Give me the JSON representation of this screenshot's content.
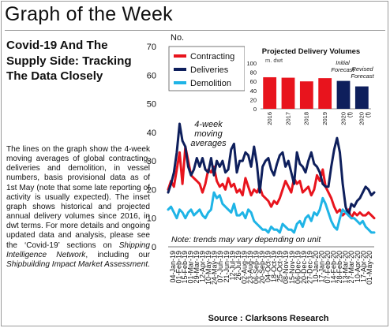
{
  "page": {
    "header": "Graph of the Week"
  },
  "article": {
    "title": "Covid-19 And The Supply Side: Tracking The Data Closely",
    "body_1": "The lines on the graph show the 4-week moving averages of global contracting, deliveries and demolition, in vessel numbers, basis provisional data as of 1st May (note that some late reporting of activity is usually expected). The inset graph shows historical and projected annual delivery volumes since 2016, in dwt terms. For more details and ongoing updated data and analysis, please see the ‘Covid-19’ sections on ",
    "body_link_1": "Shipping Intelligence Network",
    "body_2": ", including our ",
    "body_link_2": "Shipbuilding Impact Market Assessment",
    "body_3": "."
  },
  "colors": {
    "contracting": "#e8141d",
    "deliveries": "#0e1f5c",
    "demolition": "#1fb4e6",
    "inset_forecast": "#0e1f5c"
  },
  "chart_data": [
    {
      "type": "line",
      "ylabel": "No.",
      "ylim": [
        0,
        70
      ],
      "yticks": [
        0,
        10,
        20,
        30,
        40,
        50,
        60,
        70
      ],
      "x_tick_labels": [
        "04-Jan-19",
        "18-Jan-19",
        "01-Feb-19",
        "15-Feb-19",
        "01-Mar-19",
        "15-Mar-19",
        "29-Mar-19",
        "12-Apr-19",
        "26-Apr-19",
        "10-May-19",
        "24-May-19",
        "07-Jun-19",
        "21-Jun-19",
        "05-Jul-19",
        "19-Jul-19",
        "02-Aug-19",
        "16-Aug-19",
        "30-Aug-19",
        "13-Sep-19",
        "27-Sep-19",
        "11-Oct-19",
        "25-Oct-19",
        "08-Nov-19",
        "22-Nov-19",
        "06-Dec-19",
        "20-Dec-19",
        "03-Jan-20",
        "17-Jan-20",
        "31-Jan-20",
        "14-Feb-20",
        "28-Feb-20",
        "13-Mar-20",
        "27-Mar-20",
        "10-Apr-20",
        "24-Apr-20"
      ],
      "x_tick_labels_shown": [
        "04-Jan-19",
        "01-Feb-19",
        "15-Feb-19",
        "01-Mar-19",
        "29-Mar-19",
        "12-Apr-19",
        "10-May-19",
        "24-May-19",
        "07-Jun-19",
        "21-Jun-19",
        "12-Jul-19",
        "26-Jul-19",
        "02-Aug-19",
        "23-Aug-19",
        "06-Sep-19",
        "20-Sep-19",
        "04-Oct-19",
        "18-Oct-19",
        "25-Oct-19",
        "08-Nov-19",
        "15-Nov-19",
        "06-Dec-19",
        "20-Dec-19",
        "27-Dec-19",
        "10-Jan-20",
        "17-Jan-20",
        "07-Feb-20",
        "14-Feb-20",
        "28-Feb-20",
        "13-Mar-20",
        "27-Mar-20",
        "10-Apr-20",
        "17-Apr-20",
        "01-May-20"
      ],
      "series": [
        {
          "name": "Contracting",
          "color": "#e8141d",
          "values": [
            20,
            23,
            21,
            27,
            33,
            22,
            35,
            30,
            25,
            24,
            23,
            22,
            19,
            22,
            27,
            26,
            28,
            23,
            21,
            22,
            20,
            24,
            21,
            22,
            19,
            20,
            18,
            24,
            21,
            18,
            20,
            19,
            21,
            18,
            17,
            16,
            14,
            16,
            15,
            17,
            20,
            23,
            21,
            19,
            24,
            22,
            23,
            19,
            20,
            21,
            18,
            20,
            25,
            23,
            27,
            21,
            19,
            17,
            14,
            12,
            13,
            11,
            12,
            13,
            10,
            12,
            11,
            12,
            11,
            11,
            12,
            11,
            10
          ]
        },
        {
          "name": "Deliveries",
          "color": "#0e1f5c",
          "values": [
            19,
            22,
            26,
            33,
            43,
            37,
            35,
            28,
            25,
            27,
            31,
            28,
            31,
            27,
            26,
            31,
            25,
            30,
            28,
            30,
            26,
            27,
            34,
            36,
            26,
            30,
            30,
            33,
            32,
            28,
            35,
            29,
            19,
            28,
            30,
            31,
            27,
            25,
            29,
            32,
            33,
            28,
            30,
            26,
            22,
            33,
            29,
            28,
            26,
            30,
            33,
            29,
            28,
            26,
            22,
            21,
            21,
            28,
            34,
            38,
            33,
            22,
            14,
            11,
            15,
            14,
            16,
            17,
            19,
            21,
            20,
            18,
            19
          ]
        },
        {
          "name": "Demolition",
          "color": "#1fb4e6",
          "values": [
            13,
            14,
            12,
            10,
            13,
            12,
            10,
            12,
            13,
            11,
            12,
            13,
            11,
            10,
            12,
            13,
            19,
            17,
            18,
            15,
            14,
            13,
            12,
            15,
            11,
            11,
            12,
            10,
            13,
            12,
            9,
            8,
            7,
            6,
            6,
            5,
            7,
            6,
            6,
            5,
            8,
            7,
            6,
            6,
            5,
            8,
            9,
            7,
            10,
            11,
            9,
            12,
            11,
            13,
            17,
            15,
            12,
            9,
            7,
            6,
            10,
            13,
            12,
            11,
            10,
            10,
            9,
            8,
            9,
            7,
            6,
            5,
            5
          ]
        }
      ],
      "legend": "top-left",
      "annotations": [
        "4-week moving averages",
        "Note: trends may vary depending on unit"
      ],
      "source": "Source : Clarksons Research"
    },
    {
      "type": "bar",
      "title": "Projected Delivery Volumes",
      "ylabel": "m. dwt",
      "ylim": [
        0,
        100
      ],
      "yticks": [
        0,
        20,
        40,
        60,
        80,
        100
      ],
      "categories": [
        "2016",
        "2017",
        "2018",
        "2019",
        "2020 (f)",
        "2020 (f)"
      ],
      "values": [
        69,
        68,
        60,
        67,
        61,
        49
      ],
      "bar_colors": [
        "#e8141d",
        "#e8141d",
        "#e8141d",
        "#e8141d",
        "#0e1f5c",
        "#0e1f5c"
      ],
      "annotations": [
        "Initial Forecast",
        "Revised Forecast"
      ]
    }
  ]
}
